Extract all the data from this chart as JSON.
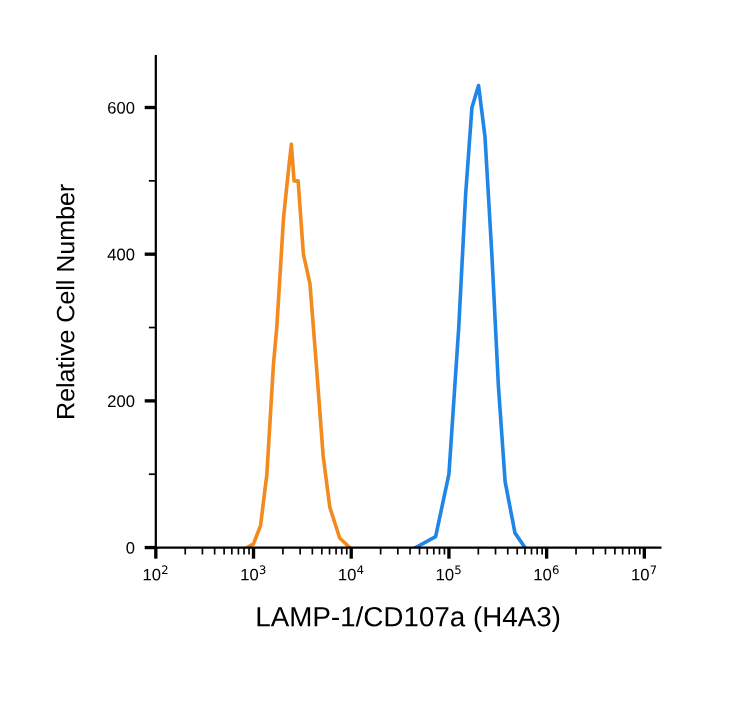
{
  "chart_data": {
    "type": "line",
    "xlabel": "LAMP-1/CD107a (H4A3)",
    "ylabel": "Relative Cell Number",
    "log": "x",
    "xlim": [
      100,
      14600000
    ],
    "ylim": [
      0,
      670
    ],
    "xticks": [
      {
        "value": 100,
        "label": "10$^{2}$"
      },
      {
        "value": 1000,
        "label": "10$^{3}$"
      },
      {
        "value": 10000,
        "label": "10$^{4}$"
      },
      {
        "value": 100000,
        "label": "10$^{5}$"
      },
      {
        "value": 1000000,
        "label": "10$^{6}$"
      },
      {
        "value": 10000000,
        "label": "10$^{7}$"
      }
    ],
    "yticks": [
      0,
      200,
      400,
      600
    ],
    "grid": false,
    "marker": "none",
    "line_style": "solid",
    "series": [
      {
        "color": "#f28a1e",
        "x": [
          859,
          1000,
          1180,
          1370,
          1600,
          1730,
          2030,
          2260,
          2440,
          2600,
          2860,
          3240,
          3780,
          4420,
          5160,
          6040,
          7620,
          9640
        ],
        "values": [
          0,
          5,
          30,
          100,
          250,
          300,
          450,
          510,
          550,
          500,
          500,
          400,
          360,
          245,
          125,
          55,
          13,
          0
        ]
      },
      {
        "color": "#1f86e8",
        "x": [
          45700,
          73100,
          100000,
          126000,
          148000,
          172000,
          201000,
          234000,
          275000,
          321000,
          376000,
          474000,
          600000
        ],
        "values": [
          0,
          15,
          100,
          300,
          480,
          600,
          630,
          560,
          400,
          220,
          90,
          20,
          0
        ]
      }
    ]
  }
}
